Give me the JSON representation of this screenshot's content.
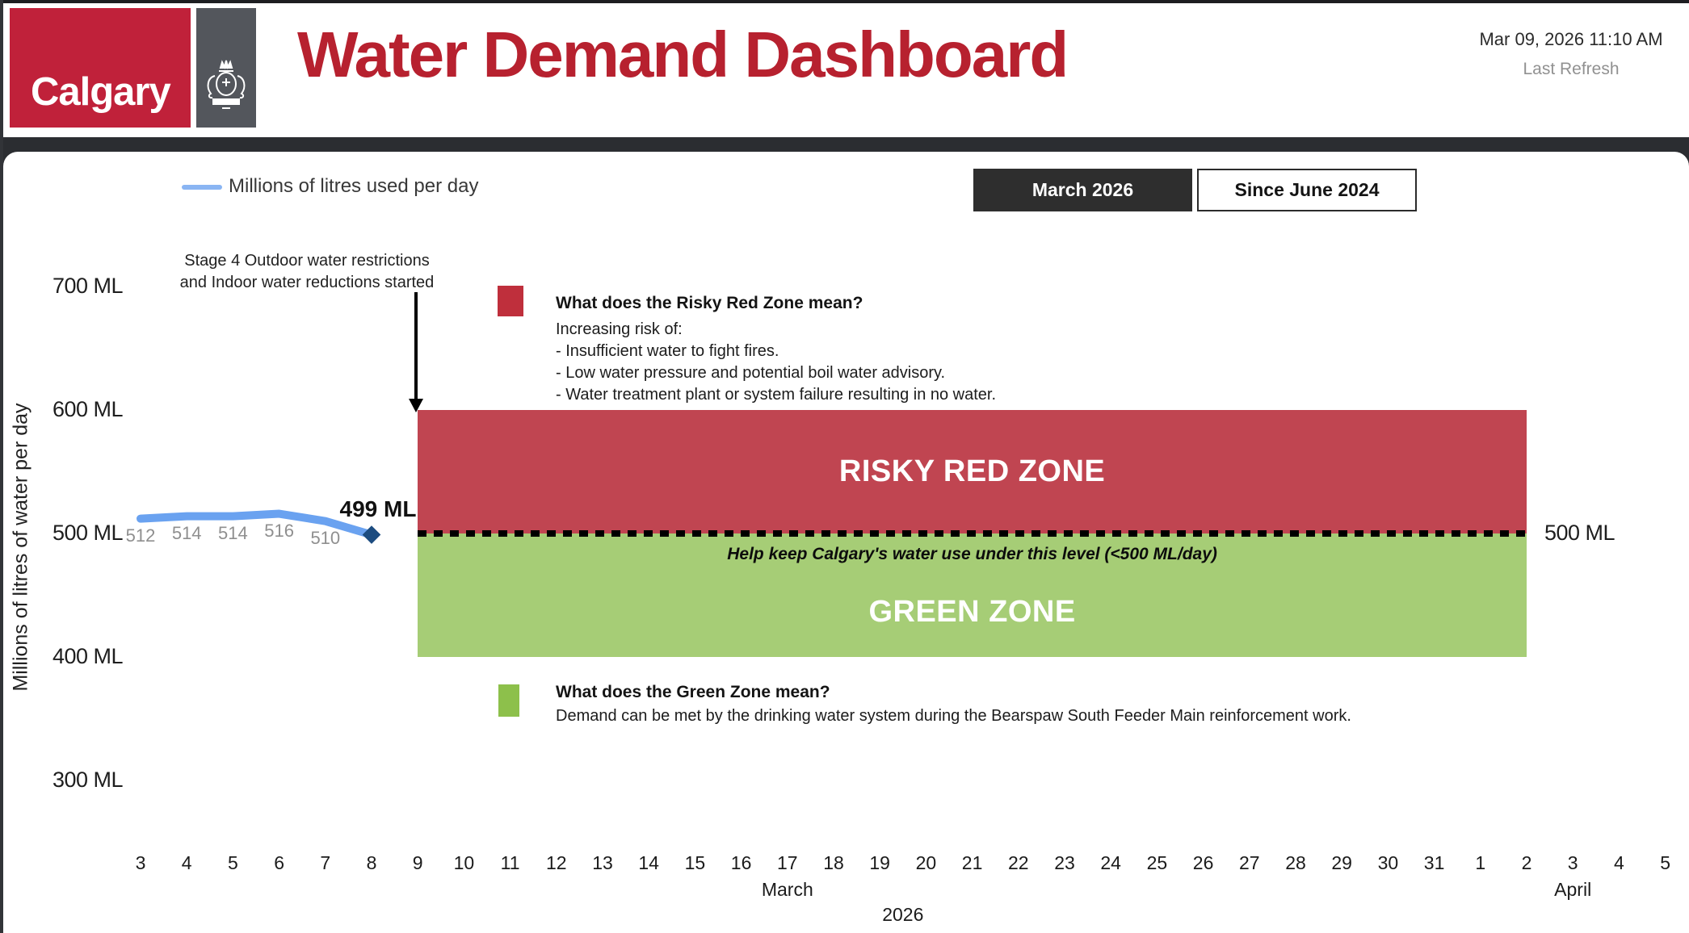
{
  "header": {
    "logo_text": "Calgary",
    "title": "Water Demand Dashboard",
    "refresh_time": "Mar 09, 2026 11:10 AM",
    "refresh_label": "Last Refresh"
  },
  "toolbar": {
    "legend_label": "Millions of litres used per day",
    "buttons": [
      {
        "label": "March 2026",
        "active": true
      },
      {
        "label": "Since June 2024",
        "active": false
      }
    ]
  },
  "annotation": {
    "line1": "Stage 4 Outdoor water restrictions",
    "line2": "and Indoor water reductions started"
  },
  "red_zone_info": {
    "title": "What does the Risky Red Zone mean?",
    "lines": [
      "Increasing risk of:",
      "- Insufficient water to fight fires.",
      "- Low water pressure and potential boil water advisory.",
      "- Water treatment plant or system failure resulting in no water."
    ]
  },
  "green_zone_info": {
    "title": "What does the Green Zone mean?",
    "lines": [
      "Demand can be met by the drinking water system during the Bearspaw South Feeder Main reinforcement work."
    ]
  },
  "colors": {
    "brand_red": "#c0213a",
    "title_red": "#b7212f",
    "zone_red": "#c04551",
    "zone_green": "#a6cd76",
    "info_red": "#bf2f3c",
    "info_green": "#8dc04b",
    "line_blue": "#6aa2f0",
    "legend_blue": "#8ab5f3",
    "marker_navy": "#1c4c80"
  },
  "chart_data": {
    "type": "line",
    "title": "",
    "xlabel": "",
    "ylabel": "Millions of litres of water per day",
    "ylim": [
      250,
      750
    ],
    "grid": false,
    "legend_position": "top-left",
    "y_ticks": [
      {
        "label": "700 ML",
        "value": 700
      },
      {
        "label": "600 ML",
        "value": 600
      },
      {
        "label": "500 ML",
        "value": 500
      },
      {
        "label": "400 ML",
        "value": 400
      },
      {
        "label": "300 ML",
        "value": 300
      }
    ],
    "x_day_labels": [
      "3",
      "4",
      "5",
      "6",
      "7",
      "8",
      "9",
      "10",
      "11",
      "12",
      "13",
      "14",
      "15",
      "16",
      "17",
      "18",
      "19",
      "20",
      "21",
      "22",
      "23",
      "24",
      "25",
      "26",
      "27",
      "28",
      "29",
      "30",
      "31",
      "1",
      "2",
      "3",
      "4",
      "5"
    ],
    "month_labels": [
      {
        "label": "March",
        "index": 14
      },
      {
        "label": "April",
        "index": 31
      }
    ],
    "year_label": "2026",
    "series": [
      {
        "name": "Millions of litres used per day",
        "x": [
          "Mar 3",
          "Mar 4",
          "Mar 5",
          "Mar 6",
          "Mar 7",
          "Mar 8"
        ],
        "x_indices": [
          0,
          1,
          2,
          3,
          4,
          5
        ],
        "values": [
          512,
          514,
          514,
          516,
          510,
          499
        ],
        "point_labels": [
          "512",
          "514",
          "514",
          "516",
          "510"
        ],
        "last_point_label": "499 ML"
      }
    ],
    "zones": [
      {
        "label": "RISKY RED ZONE",
        "y_from": 500,
        "y_to": 600,
        "x_from": "Mar 9",
        "x_to": "Apr 2",
        "x_from_index": 6,
        "x_to_index": 30,
        "color": "#c04551"
      },
      {
        "label": "GREEN ZONE",
        "y_from": 400,
        "y_to": 500,
        "x_from": "Mar 9",
        "x_to": "Apr 2",
        "x_from_index": 6,
        "x_to_index": 30,
        "color": "#a6cd76"
      }
    ],
    "threshold": {
      "value": 500,
      "right_label": "500 ML",
      "help_text": "Help keep Calgary's water use under this level (<500 ML/day)"
    }
  }
}
